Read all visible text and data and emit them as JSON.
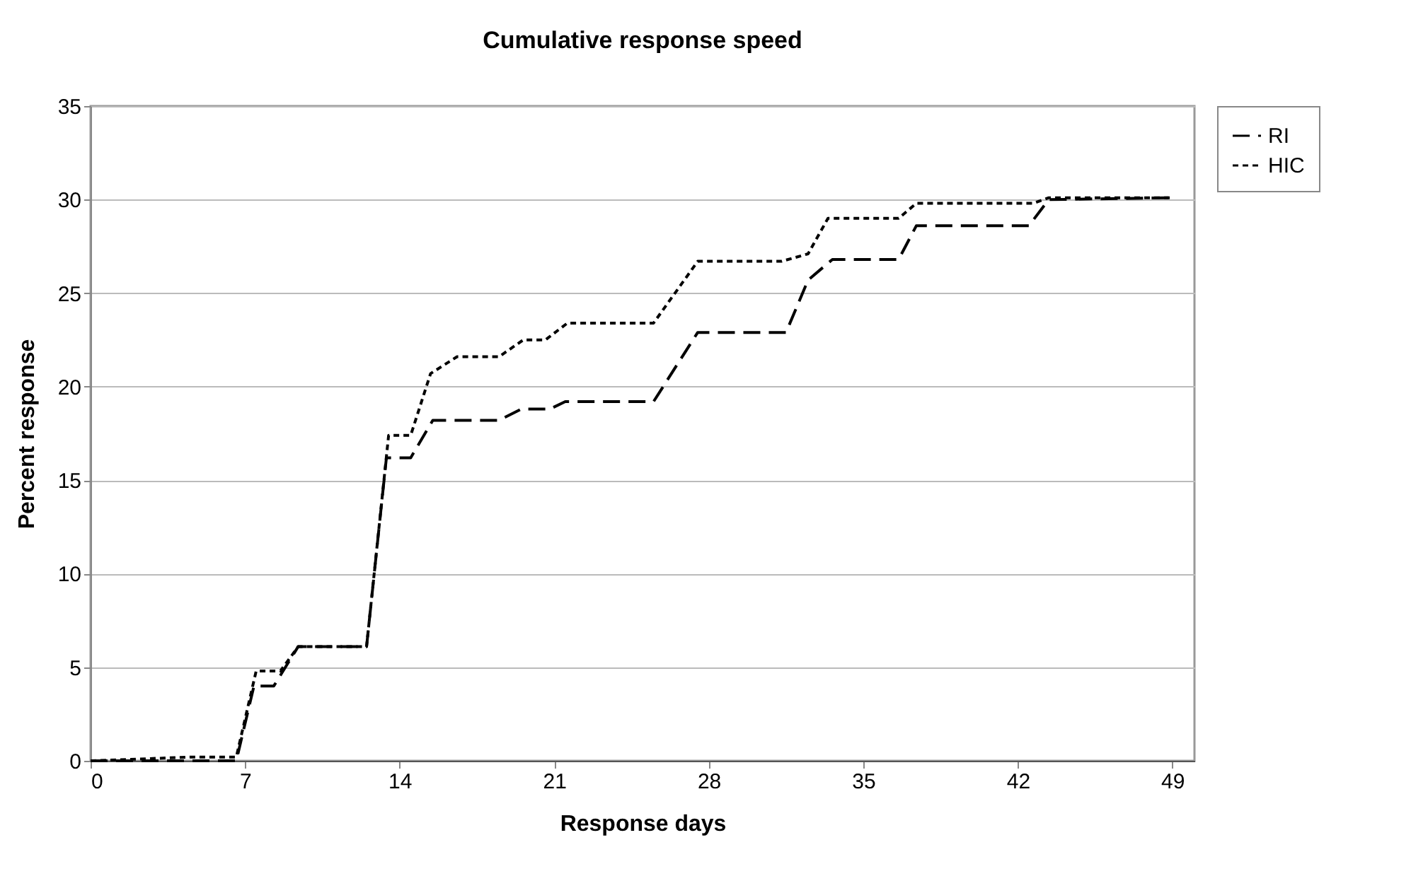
{
  "chart_data": {
    "type": "line",
    "title": "Cumulative response speed",
    "xlabel": "Response days",
    "ylabel": "Percent response",
    "xlim": [
      0,
      50
    ],
    "xticks": [
      0,
      7,
      14,
      21,
      28,
      35,
      42,
      49
    ],
    "ylim": [
      0,
      35
    ],
    "yticks": [
      0,
      5,
      10,
      15,
      20,
      25,
      30,
      35
    ],
    "grid": "y",
    "legend": "right",
    "series": [
      {
        "name": "RI",
        "color": "#000000",
        "line_style": "dashed",
        "x": [
          0,
          6.6,
          7.4,
          8.3,
          9.4,
          12.5,
          13.4,
          14.5,
          15.5,
          18.5,
          19.5,
          20.8,
          21.5,
          25.5,
          27.5,
          31.5,
          32.5,
          33.6,
          36.6,
          37.4,
          42.5,
          43.4,
          49
        ],
        "values": [
          0,
          0,
          4.0,
          4.0,
          6.1,
          6.1,
          16.2,
          16.2,
          18.2,
          18.2,
          18.8,
          18.8,
          19.2,
          19.2,
          22.9,
          22.9,
          25.7,
          26.8,
          26.8,
          28.6,
          28.6,
          30.0,
          30.1
        ]
      },
      {
        "name": "HIC",
        "color": "#000000",
        "line_style": "dotted",
        "x": [
          0,
          4.6,
          6.6,
          7.5,
          8.6,
          9.4,
          12.5,
          13.5,
          14.5,
          15.4,
          16.6,
          18.5,
          19.6,
          20.6,
          21.6,
          25.5,
          27.5,
          31.3,
          32.5,
          33.4,
          36.6,
          37.4,
          42.7,
          43.4,
          49
        ],
        "values": [
          0,
          0.2,
          0.2,
          4.8,
          4.8,
          6.1,
          6.1,
          17.4,
          17.4,
          20.7,
          21.6,
          21.6,
          22.5,
          22.5,
          23.4,
          23.4,
          26.7,
          26.7,
          27.1,
          29.0,
          29.0,
          29.8,
          29.8,
          30.1,
          30.1
        ]
      }
    ]
  }
}
